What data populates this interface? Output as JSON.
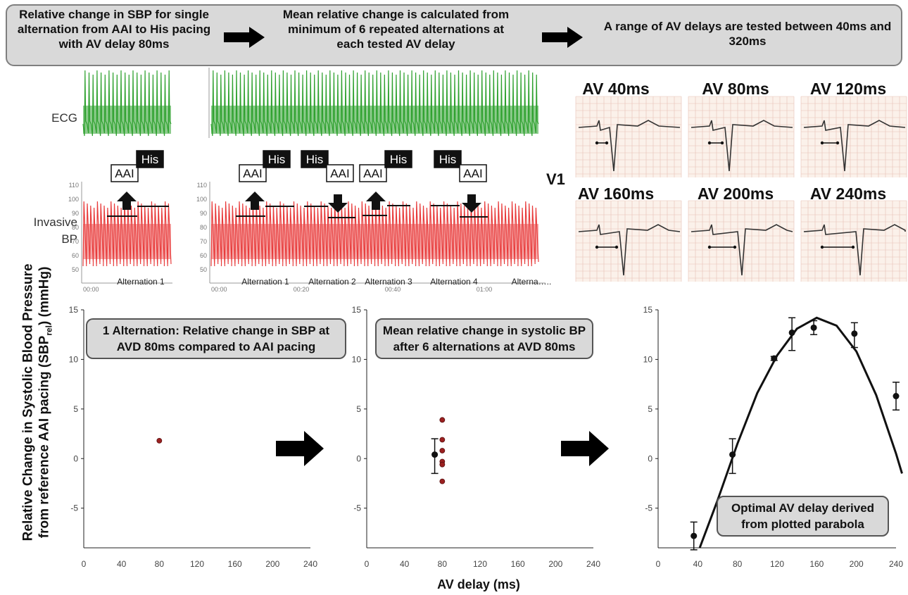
{
  "banner": {
    "step1": "Relative change in SBP for single alternation from AAI to His pacing with AV delay 80ms",
    "step2": "Mean relative change is calculated from minimum of 6 repeated alternations at each tested AV delay",
    "step3": "A range of AV delays are tested between 40ms and 320ms"
  },
  "traces": {
    "ecg_label": "ECG",
    "bp_label_line1": "Invasive",
    "bp_label_line2": "BP",
    "bp_ticks": [
      "110",
      "100",
      "90",
      "80",
      "70",
      "60",
      "50"
    ],
    "time_ticks_left": [
      "00:00"
    ],
    "time_ticks_right": [
      "00:00",
      "00:20",
      "00:40",
      "01:00"
    ],
    "alternation_left": "Alternation 1",
    "alternations_right": [
      "Alternation 1",
      "Alternation 2",
      "Alternation 3",
      "Alternation 4",
      "Alterna….."
    ],
    "mode_his": "His",
    "mode_aai": "AAI"
  },
  "v1_panel": {
    "lead_label": "V1",
    "delays": [
      "AV 40ms",
      "AV 80ms",
      "AV 120ms",
      "AV 160ms",
      "AV 200ms",
      "AV 240ms"
    ]
  },
  "plots": {
    "y_axis_label_line1": "Relative Change in Systolic Blood Pressure",
    "y_axis_label_line2": "from reference AAI pacing (SBP",
    "y_axis_label_sub": "rel",
    "y_axis_label_unit": ") (mmHg)",
    "x_axis_label": "AV delay (ms)",
    "callout1": "1 Alternation: Relative change in SBP at AVD 80ms compared to AAI pacing",
    "callout2": "Mean relative change in systolic BP after 6 alternations at AVD 80ms",
    "callout3": "Optimal AV delay derived from plotted parabola"
  },
  "colors": {
    "ecg": "#2ea12e",
    "bp": "#e83b3b",
    "dot_red": "#9b2020",
    "panel_bg": "#d9d9d9"
  },
  "chart_data": [
    {
      "type": "scatter",
      "title": "",
      "xlabel": "",
      "ylabel": "",
      "x_ticks": [
        0,
        40,
        80,
        120,
        160,
        200,
        240
      ],
      "y_ticks": [
        -5,
        0,
        5,
        10,
        15
      ],
      "xlim": [
        0,
        240
      ],
      "ylim": [
        -9,
        15
      ],
      "points": [
        {
          "x": 80,
          "y": 1.8
        }
      ]
    },
    {
      "type": "scatter",
      "title": "",
      "xlabel": "",
      "ylabel": "",
      "x_ticks": [
        0,
        40,
        80,
        120,
        160,
        200,
        240
      ],
      "y_ticks": [
        -5,
        0,
        5,
        10,
        15
      ],
      "xlim": [
        0,
        240
      ],
      "ylim": [
        -9,
        15
      ],
      "points": [
        {
          "x": 80,
          "y": 3.9
        },
        {
          "x": 80,
          "y": 1.9
        },
        {
          "x": 80,
          "y": 0.8
        },
        {
          "x": 80,
          "y": -0.3
        },
        {
          "x": 80,
          "y": -0.6
        },
        {
          "x": 80,
          "y": -2.3
        }
      ],
      "mean": {
        "x": 72,
        "y": 0.4,
        "error_low": -1.5,
        "error_high": 2.0
      }
    },
    {
      "type": "scatter",
      "title": "",
      "xlabel": "",
      "ylabel": "",
      "x_ticks": [
        0,
        40,
        80,
        120,
        160,
        200,
        240
      ],
      "y_ticks": [
        -5,
        0,
        5,
        10,
        15
      ],
      "xlim": [
        0,
        240
      ],
      "ylim": [
        -9,
        15
      ],
      "points": [
        {
          "x": 36,
          "y": -7.8,
          "error_low": -9.2,
          "error_high": -6.4
        },
        {
          "x": 75,
          "y": 0.4,
          "error_low": -1.5,
          "error_high": 2.0
        },
        {
          "x": 117,
          "y": 10.1,
          "error_low": 9.9,
          "error_high": 10.3
        },
        {
          "x": 135,
          "y": 12.7,
          "error_low": 10.9,
          "error_high": 14.2
        },
        {
          "x": 157,
          "y": 13.2,
          "error_low": 12.5,
          "error_high": 13.9
        },
        {
          "x": 198,
          "y": 12.6,
          "error_low": 11.2,
          "error_high": 13.7
        },
        {
          "x": 240,
          "y": 6.3,
          "error_low": 4.9,
          "error_high": 7.7
        }
      ],
      "fit": {
        "type": "parabola",
        "x": [
          42,
          60,
          80,
          100,
          120,
          140,
          160,
          180,
          200,
          220,
          240,
          246
        ],
        "y": [
          -9,
          -4.2,
          1.5,
          6.6,
          10.4,
          13.1,
          14.2,
          13.4,
          10.8,
          6.4,
          0.5,
          -1.5
        ]
      }
    }
  ]
}
